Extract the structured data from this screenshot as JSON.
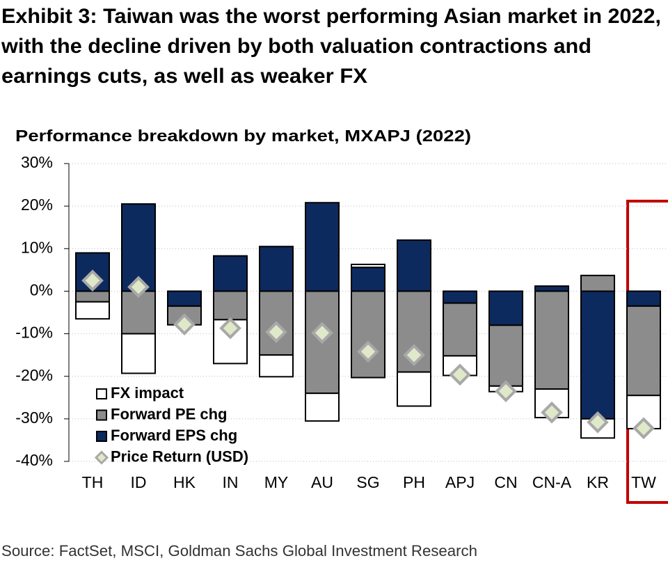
{
  "chart_data": {
    "type": "bar",
    "title": [
      "Exhibit 3: Taiwan was the worst performing Asian market in 2022,",
      "with the decline driven by both valuation contractions and",
      "earnings cuts, as well as weaker FX"
    ],
    "subtitle": "Performance breakdown by market, MXAPJ (2022)",
    "source": "Source: FactSet, MSCI, Goldman Sachs Global Investment Research",
    "categories": [
      "TH",
      "ID",
      "HK",
      "IN",
      "MY",
      "AU",
      "SG",
      "PH",
      "APJ",
      "CN",
      "CN-A",
      "KR",
      "TW"
    ],
    "series": [
      {
        "name": "FX impact",
        "color": "#ffffff",
        "values": [
          -4,
          -9.3,
          0,
          -10.3,
          -5.1,
          -6.5,
          0.7,
          -8,
          -4.6,
          -1.3,
          -6.7,
          -4.5,
          -7.8
        ]
      },
      {
        "name": "Forward PE chg",
        "color": "#8c8c8c",
        "values": [
          -2.5,
          -10,
          -4.4,
          -6.7,
          -15,
          -24,
          -20.3,
          -19,
          -12.4,
          -14.3,
          -23,
          3.7,
          -21
        ]
      },
      {
        "name": "Forward EPS chg",
        "color": "#0d2a5e",
        "values": [
          9,
          20.5,
          -3.5,
          8.3,
          10.5,
          20.8,
          5.6,
          12,
          -2.8,
          -8,
          1.2,
          -30,
          -3.5
        ]
      },
      {
        "name": "Price Return (USD)",
        "color": "#dfe8c8",
        "type": "diamond",
        "values": [
          2.5,
          1,
          -7.8,
          -8.7,
          -9.6,
          -9.8,
          -14.2,
          -15,
          -19.6,
          -23.5,
          -28.5,
          -30.8,
          -32.2
        ]
      }
    ],
    "ylim": [
      -40,
      30
    ],
    "yticks": [
      {
        "value": -40,
        "label": "-40%"
      },
      {
        "value": -30,
        "label": "-30%"
      },
      {
        "value": -20,
        "label": "-20%"
      },
      {
        "value": -10,
        "label": "-10%"
      },
      {
        "value": 0,
        "label": "0%"
      },
      {
        "value": 10,
        "label": "10%"
      },
      {
        "value": 20,
        "label": "20%"
      },
      {
        "value": 30,
        "label": "30%"
      }
    ],
    "grid": true
  }
}
